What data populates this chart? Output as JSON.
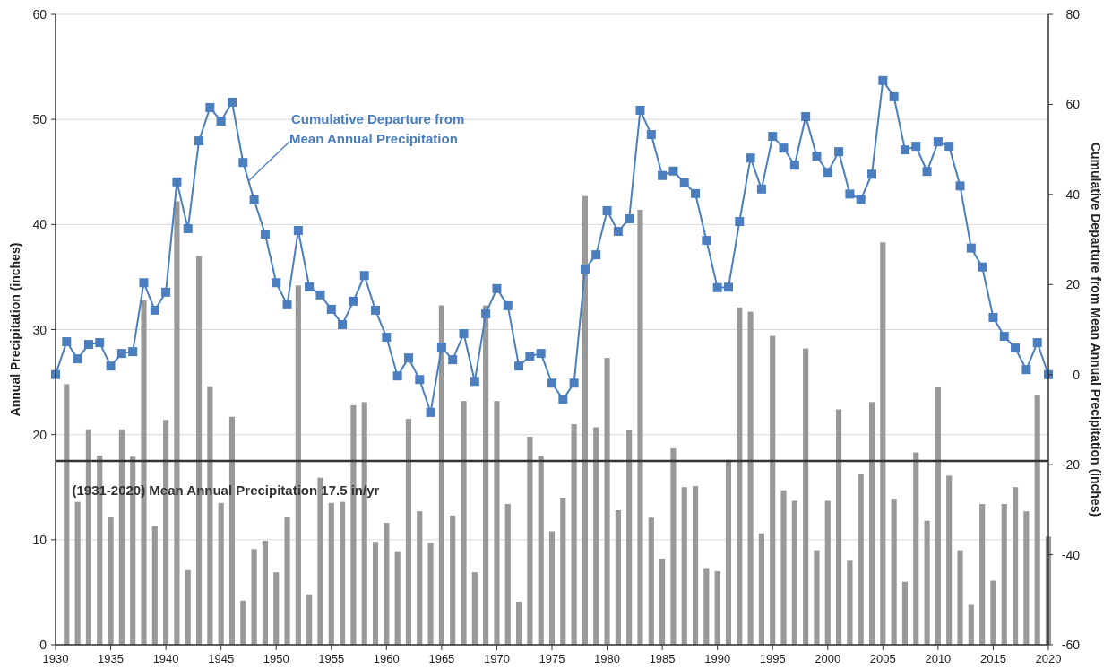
{
  "chart_data": {
    "type": "bar",
    "ylabel": "Annual Precipitation (inches)",
    "y2label": "Cumulative Departure from Mean Annual Precipitation (inches)",
    "xlim": [
      1930,
      2020
    ],
    "xticks": [
      1930,
      1935,
      1940,
      1945,
      1950,
      1955,
      1960,
      1965,
      1970,
      1975,
      1980,
      1985,
      1990,
      1995,
      2000,
      2005,
      2010,
      2015,
      2020
    ],
    "ylim": [
      0,
      60
    ],
    "yticks": [
      0,
      10,
      20,
      30,
      40,
      50,
      60
    ],
    "y2lim": [
      -60,
      80
    ],
    "y2ticks": [
      -60,
      -40,
      -20,
      0,
      20,
      40,
      60,
      80
    ],
    "grid": "y",
    "ref_lines": [
      {
        "axis": "y",
        "value": 17.5,
        "label": "(1931-2020) Mean Annual Precipitation 17.5 in/yr",
        "color": "#333333"
      }
    ],
    "series": [
      {
        "color": "#999999",
        "x": [
          1931,
          1932,
          1933,
          1934,
          1935,
          1936,
          1937,
          1938,
          1939,
          1940,
          1941,
          1942,
          1943,
          1944,
          1945,
          1946,
          1947,
          1948,
          1949,
          1950,
          1951,
          1952,
          1953,
          1954,
          1955,
          1956,
          1957,
          1958,
          1959,
          1960,
          1961,
          1962,
          1963,
          1964,
          1965,
          1966,
          1967,
          1968,
          1969,
          1970,
          1971,
          1972,
          1973,
          1974,
          1975,
          1976,
          1977,
          1978,
          1979,
          1980,
          1981,
          1982,
          1983,
          1984,
          1985,
          1986,
          1987,
          1988,
          1989,
          1990,
          1991,
          1992,
          1993,
          1994,
          1995,
          1996,
          1997,
          1998,
          1999,
          2000,
          2001,
          2002,
          2003,
          2004,
          2005,
          2006,
          2007,
          2008,
          2009,
          2010,
          2011,
          2012,
          2013,
          2014,
          2015,
          2016,
          2017,
          2018,
          2019,
          2020
        ],
        "values": [
          24.8,
          13.6,
          20.5,
          18.0,
          12.2,
          20.5,
          17.9,
          32.8,
          11.3,
          21.4,
          42.2,
          7.1,
          37.0,
          24.6,
          13.5,
          21.7,
          4.2,
          9.1,
          9.9,
          6.9,
          12.2,
          34.2,
          4.8,
          15.9,
          13.5,
          13.6,
          22.8,
          23.1,
          9.8,
          11.6,
          8.9,
          21.5,
          12.7,
          9.7,
          32.3,
          12.3,
          23.2,
          6.9,
          32.3,
          23.2,
          13.4,
          4.1,
          19.8,
          18.0,
          10.8,
          14.0,
          21.0,
          42.7,
          20.7,
          27.3,
          12.8,
          20.4,
          41.4,
          12.1,
          8.2,
          18.7,
          15.0,
          15.1,
          7.3,
          7.0,
          17.6,
          32.1,
          31.7,
          10.6,
          29.4,
          14.7,
          13.7,
          28.2,
          9.0,
          13.7,
          22.4,
          8.0,
          16.3,
          23.1,
          38.3,
          13.9,
          6.0,
          18.3,
          11.8,
          24.5,
          16.1,
          9.0,
          3.8,
          13.4,
          6.1,
          13.4,
          15.0,
          12.7,
          23.8,
          10.3
        ]
      },
      {
        "type": "line",
        "axis": "y2",
        "name": "Cumulative Departure from Mean Annual Precipitation",
        "color": "#4a7ebf",
        "marker": "square",
        "line_style": "solid",
        "x": [
          1930,
          1931,
          1932,
          1933,
          1934,
          1935,
          1936,
          1937,
          1938,
          1939,
          1940,
          1941,
          1942,
          1943,
          1944,
          1945,
          1946,
          1947,
          1948,
          1949,
          1950,
          1951,
          1952,
          1953,
          1954,
          1955,
          1956,
          1957,
          1958,
          1959,
          1960,
          1961,
          1962,
          1963,
          1964,
          1965,
          1966,
          1967,
          1968,
          1969,
          1970,
          1971,
          1972,
          1973,
          1974,
          1975,
          1976,
          1977,
          1978,
          1979,
          1980,
          1981,
          1982,
          1983,
          1984,
          1985,
          1986,
          1987,
          1988,
          1989,
          1990,
          1991,
          1992,
          1993,
          1994,
          1995,
          1996,
          1997,
          1998,
          1999,
          2000,
          2001,
          2002,
          2003,
          2004,
          2005,
          2006,
          2007,
          2008,
          2009,
          2010,
          2011,
          2012,
          2013,
          2014,
          2015,
          2016,
          2017,
          2018,
          2019,
          2020
        ],
        "values": [
          0,
          7.3,
          3.5,
          6.7,
          7.1,
          1.9,
          4.7,
          5.1,
          20.4,
          14.3,
          18.3,
          42.8,
          32.4,
          51.9,
          59.3,
          56.3,
          60.5,
          47.1,
          38.8,
          31.2,
          20.4,
          15.5,
          32.0,
          19.5,
          17.7,
          14.5,
          11.1,
          16.3,
          22.0,
          14.3,
          8.3,
          -0.3,
          3.7,
          -1.1,
          -8.4,
          6.1,
          3.3,
          9.1,
          -1.5,
          13.5,
          19.1,
          15.3,
          1.9,
          4.1,
          4.7,
          -1.9,
          -5.5,
          -1.9,
          23.4,
          26.6,
          36.4,
          31.8,
          34.6,
          58.7,
          53.3,
          44.2,
          45.2,
          42.6,
          40.2,
          29.8,
          19.3,
          19.4,
          34.0,
          48.1,
          41.2,
          52.9,
          50.3,
          46.5,
          57.3,
          48.5,
          44.9,
          49.5,
          40.1,
          38.9,
          44.5,
          65.3,
          61.7,
          49.9,
          50.7,
          45.1,
          51.7,
          50.7,
          41.9,
          28.1,
          23.9,
          12.7,
          8.5,
          5.9,
          1.1,
          7.1,
          0
        ]
      }
    ]
  }
}
